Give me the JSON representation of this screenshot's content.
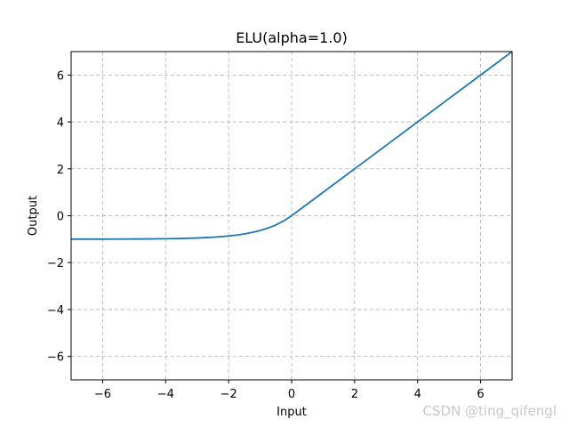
{
  "chart_data": {
    "type": "line",
    "title": "ELU(alpha=1.0)",
    "xlabel": "Input",
    "ylabel": "Output",
    "xlim": [
      -7,
      7
    ],
    "ylim": [
      -7,
      7
    ],
    "x_ticks": [
      -6,
      -4,
      -2,
      0,
      2,
      4,
      6
    ],
    "y_ticks": [
      -6,
      -4,
      -2,
      0,
      2,
      4,
      6
    ],
    "x_tick_labels": [
      "−6",
      "−4",
      "−2",
      "0",
      "2",
      "4",
      "6"
    ],
    "y_tick_labels": [
      "−6",
      "−4",
      "−2",
      "0",
      "2",
      "4",
      "6"
    ],
    "grid": true,
    "grid_style": "dashed",
    "legend": "none",
    "series": [
      {
        "color": "#1f77b4",
        "x": [
          -7,
          -6.5,
          -6,
          -5.5,
          -5,
          -4.5,
          -4,
          -3.5,
          -3,
          -2.5,
          -2,
          -1.75,
          -1.5,
          -1.25,
          -1,
          -0.75,
          -0.5,
          -0.25,
          0,
          1,
          2,
          3,
          4,
          5,
          6,
          7
        ],
        "y": [
          -0.999,
          -0.998,
          -0.998,
          -0.996,
          -0.993,
          -0.989,
          -0.982,
          -0.97,
          -0.95,
          -0.918,
          -0.865,
          -0.826,
          -0.777,
          -0.713,
          -0.632,
          -0.528,
          -0.393,
          -0.221,
          0,
          1,
          2,
          3,
          4,
          5,
          6,
          7
        ]
      }
    ]
  },
  "watermark": "CSDN @ting_qifengl"
}
